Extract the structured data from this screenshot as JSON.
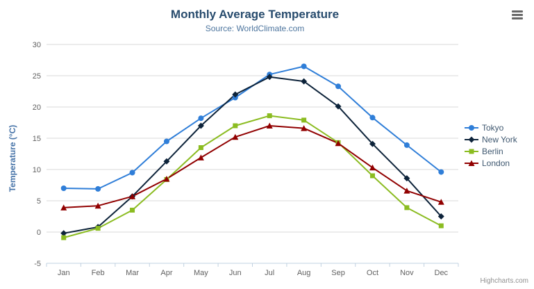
{
  "header": {
    "title": "Monthly Average Temperature",
    "subtitle": "Source: WorldClimate.com"
  },
  "credits": "Highcharts.com",
  "icons": {
    "export_menu": "hamburger-icon"
  },
  "colors": {
    "title": "#274b6d",
    "subtitle": "#4d759e",
    "axis_title": "#4572a7",
    "axis_labels": "#606060",
    "grid": "#d8d8d8",
    "axis_line": "#c0d0e0",
    "legend_text": "#3e576f"
  },
  "chart_data": {
    "type": "line",
    "title": "Monthly Average Temperature",
    "subtitle": "Source: WorldClimate.com",
    "categories": [
      "Jan",
      "Feb",
      "Mar",
      "Apr",
      "May",
      "Jun",
      "Jul",
      "Aug",
      "Sep",
      "Oct",
      "Nov",
      "Dec"
    ],
    "series": [
      {
        "name": "Tokyo",
        "color": "#2f7ed8",
        "marker": "circle",
        "values": [
          7.0,
          6.9,
          9.5,
          14.5,
          18.2,
          21.5,
          25.2,
          26.5,
          23.3,
          18.3,
          13.9,
          9.6
        ]
      },
      {
        "name": "New York",
        "color": "#0d233a",
        "marker": "diamond",
        "values": [
          -0.2,
          0.8,
          5.7,
          11.3,
          17.0,
          22.0,
          24.8,
          24.1,
          20.1,
          14.1,
          8.6,
          2.5
        ]
      },
      {
        "name": "Berlin",
        "color": "#8bbc21",
        "marker": "square",
        "values": [
          -0.9,
          0.6,
          3.5,
          8.4,
          13.5,
          17.0,
          18.6,
          17.9,
          14.3,
          9.0,
          3.9,
          1.0
        ]
      },
      {
        "name": "London",
        "color": "#910000",
        "marker": "triangle",
        "values": [
          3.9,
          4.2,
          5.7,
          8.5,
          11.9,
          15.2,
          17.0,
          16.6,
          14.2,
          10.3,
          6.6,
          4.8
        ]
      }
    ],
    "xlabel": "",
    "ylabel": "Temperature (°C)",
    "ylim": [
      -5,
      30
    ],
    "ytick_step": 5,
    "grid": true,
    "legend_position": "right"
  }
}
